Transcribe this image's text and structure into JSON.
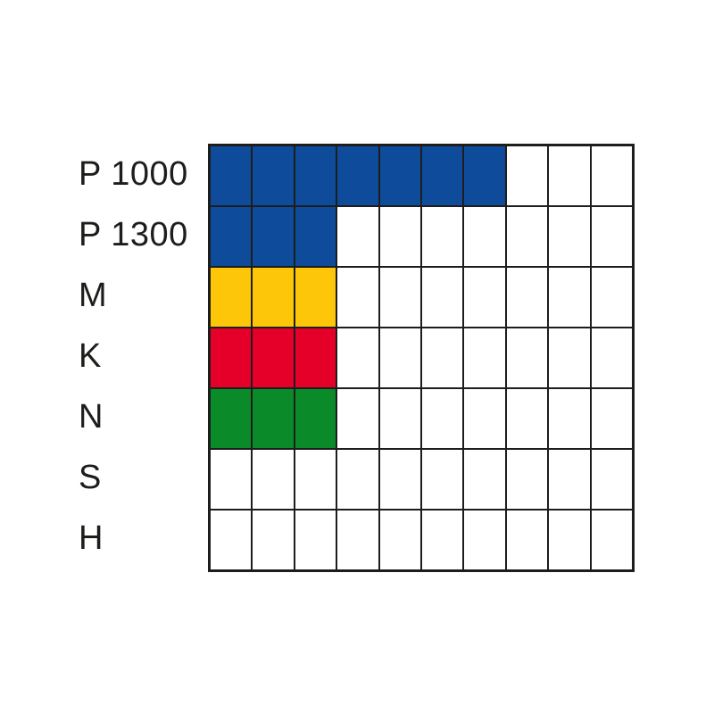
{
  "chart_data": {
    "type": "heatmap",
    "title": "",
    "xlabel": "",
    "ylabel": "",
    "columns": 10,
    "value_range": [
      0,
      10
    ],
    "grid": true,
    "legend_position": "none",
    "categories": [
      "P 1000",
      "P 1300",
      "M",
      "K",
      "N",
      "S",
      "H"
    ],
    "values": [
      7,
      3,
      3,
      3,
      3,
      0,
      0
    ],
    "rows": [
      {
        "label": "P 1000",
        "filled": 7,
        "color": "#0e4c9b"
      },
      {
        "label": "P 1300",
        "filled": 3,
        "color": "#0e4c9b"
      },
      {
        "label": "M",
        "filled": 3,
        "color": "#fdc608"
      },
      {
        "label": "K",
        "filled": 3,
        "color": "#e40029"
      },
      {
        "label": "N",
        "filled": 3,
        "color": "#0a8a28"
      },
      {
        "label": "S",
        "filled": 0,
        "color": null
      },
      {
        "label": "H",
        "filled": 0,
        "color": null
      }
    ]
  },
  "colors": {
    "grid_line": "#1d1d1b",
    "empty_cell": "#ffffff",
    "background": "#ffffff",
    "label_text": "#1d1d1b"
  }
}
